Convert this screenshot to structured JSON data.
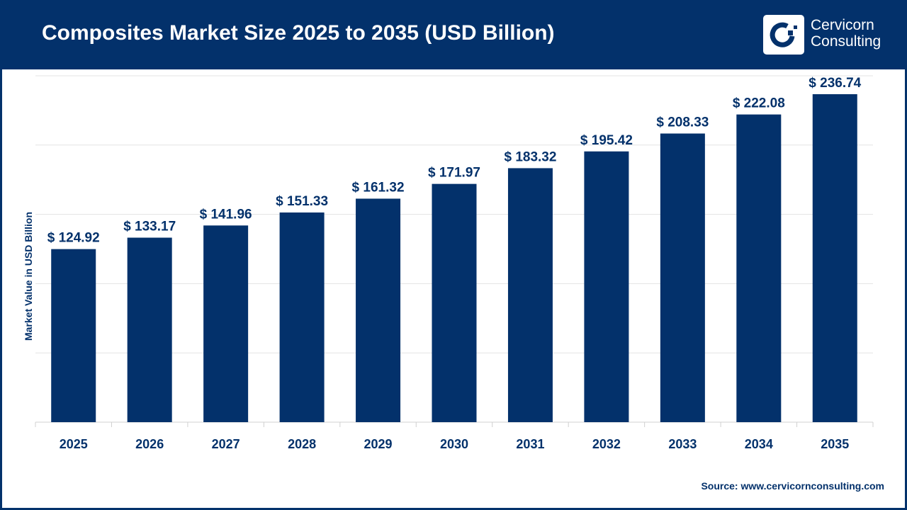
{
  "header": {
    "title": "Composites Market Size 2025 to 2035 (USD Billion)",
    "logo_text_line1": "Cervicorn",
    "logo_text_line2": "Consulting"
  },
  "source": "Source: www.cervicornconsulting.com",
  "colors": {
    "bar": "#03316b",
    "header": "#03316b",
    "grid": "#e3e3e3"
  },
  "chart_data": {
    "type": "bar",
    "title": "Composites Market Size 2025 to 2035 (USD Billion)",
    "xlabel": "",
    "ylabel": "Market Value in USD Billion",
    "ylim": [
      0,
      250
    ],
    "grid": true,
    "categories": [
      "2025",
      "2026",
      "2027",
      "2028",
      "2029",
      "2030",
      "2031",
      "2032",
      "2033",
      "2034",
      "2035"
    ],
    "values": [
      124.92,
      133.17,
      141.96,
      151.33,
      161.32,
      171.97,
      183.32,
      195.42,
      208.33,
      222.08,
      236.74
    ],
    "data_labels": [
      "$ 124.92",
      "$ 133.17",
      "$ 141.96",
      "$ 151.33",
      "$ 161.32",
      "$ 171.97",
      "$ 183.32",
      "$ 195.42",
      "$ 208.33",
      "$ 222.08",
      "$ 236.74"
    ]
  }
}
